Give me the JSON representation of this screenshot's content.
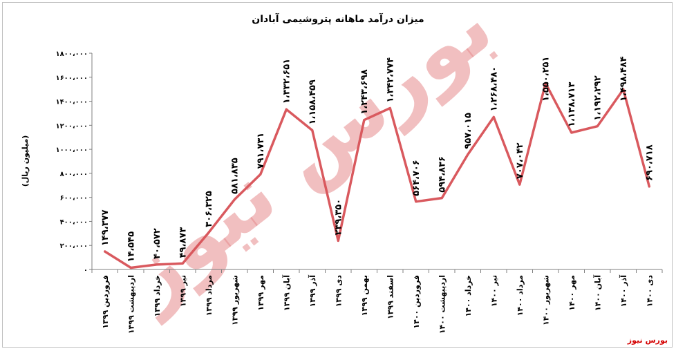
{
  "chart_data": {
    "type": "line",
    "title": "میزان درآمد ماهانه پتروشیمی آبادان",
    "ylabel": "(میلیون ریال)",
    "ylim": [
      0,
      1800000
    ],
    "yticks": [
      "۰",
      "۲۰۰،۰۰۰",
      "۴۰۰،۰۰۰",
      "۶۰۰،۰۰۰",
      "۸۰۰،۰۰۰",
      "۱۰۰۰،۰۰۰",
      "۱۲۰۰،۰۰۰",
      "۱۴۰۰،۰۰۰",
      "۱۶۰۰،۰۰۰",
      "۱۸۰۰،۰۰۰"
    ],
    "ytick_values": [
      0,
      200000,
      400000,
      600000,
      800000,
      1000000,
      1200000,
      1400000,
      1600000,
      1800000
    ],
    "categories": [
      "فروردین ۱۳۹۹",
      "اردیبهشت ۱۳۹۹",
      "خرداد ۱۳۹۹",
      "تیر ۱۳۹۹",
      "مرداد ۱۳۹۹",
      "شهریور ۱۳۹۹",
      "مهر ۱۳۹۹",
      "آبان ۱۳۹۹",
      "آذر ۱۳۹۹",
      "دی ۱۳۹۹",
      "بهمن ۱۳۹۹",
      "اسفند ۱۳۹۹",
      "فروردین ۱۴۰۰",
      "اردیبهشت ۱۴۰۰",
      "خرداد ۱۴۰۰",
      "تیر ۱۴۰۰",
      "مرداد ۱۴۰۰",
      "شهریور ۱۴۰۰",
      "مهر ۱۴۰۰",
      "آبان ۱۴۰۰",
      "آذر ۱۴۰۰",
      "دی ۱۴۰۰"
    ],
    "values": [
      149377,
      14545,
      40572,
      49873,
      306325,
      581835,
      791731,
      1332651,
      1158459,
      239350,
      1243698,
      1342774,
      564706,
      594836,
      957015,
      1268480,
      707042,
      1550251,
      1138713,
      1192292,
      1498484,
      690718
    ],
    "data_labels": [
      "۱۴۹،۳۷۷",
      "۱۴،۵۴۵",
      "۴۰،۵۷۲",
      "۴۹،۸۷۳",
      "۳۰۶،۳۲۵",
      "۵۸۱،۸۳۵",
      "۷۹۱،۷۳۱",
      "۱،۳۳۲،۶۵۱",
      "۱،۱۵۸،۴۵۹",
      "۲۳۹،۳۵۰",
      "۱،۲۴۳،۶۹۸",
      "۱،۳۴۲،۷۷۴",
      "۵۶۴،۷۰۶",
      "۵۹۴،۸۳۶",
      "۹۵۷،۰۱۵",
      "۱،۲۶۸،۴۸۰",
      "۷۰۷،۰۴۲",
      "۱،۵۵۰،۲۵۱",
      "۱،۱۳۸،۷۱۳",
      "۱،۱۹۲،۲۹۲",
      "۱،۴۹۸،۴۸۴",
      "۶۹۰،۷۱۸"
    ],
    "grid": false,
    "legend": "none",
    "line_color": "#d9595e"
  },
  "source": "بورس نیوز",
  "watermark_text": "بورس نیوز"
}
